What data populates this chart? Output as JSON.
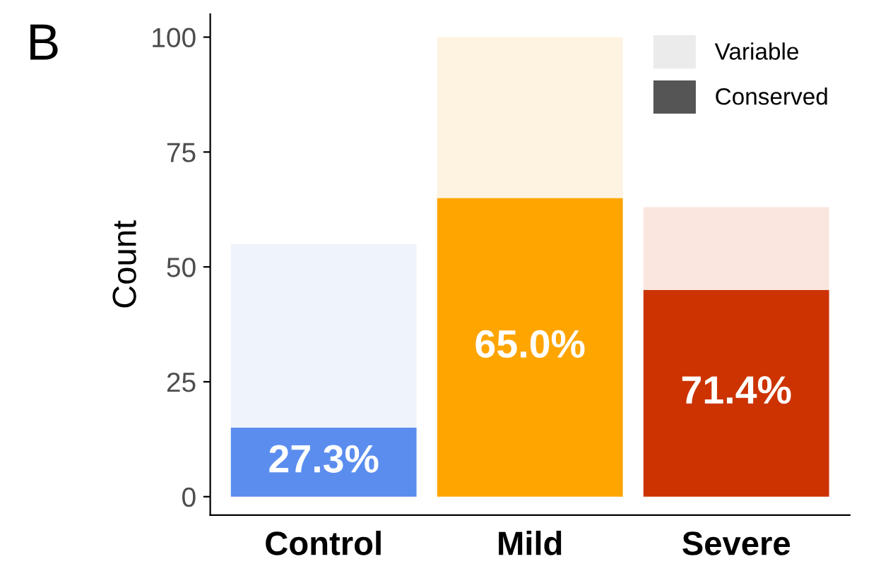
{
  "chart_data": {
    "type": "bar",
    "stacked": true,
    "ylabel": "Count",
    "categories": [
      "Control",
      "Mild",
      "Severe"
    ],
    "series": [
      {
        "name": "Conserved",
        "color": "#555555",
        "colors": [
          "#5b8def",
          "#ffa500",
          "#cc3300"
        ],
        "values": [
          15,
          65,
          45
        ]
      },
      {
        "name": "Variable",
        "color": "#ebebeb",
        "colors": [
          "#eef3fc",
          "#fef3e1",
          "#fbe6df"
        ],
        "values": [
          40,
          35,
          18
        ]
      }
    ],
    "ylim": [
      -4,
      105
    ],
    "yticks": [
      0,
      25,
      50,
      75,
      100
    ],
    "grid": false,
    "legend": "top right",
    "annotations": [
      "B",
      "27.3%",
      "65.0%",
      "71.4%"
    ]
  }
}
